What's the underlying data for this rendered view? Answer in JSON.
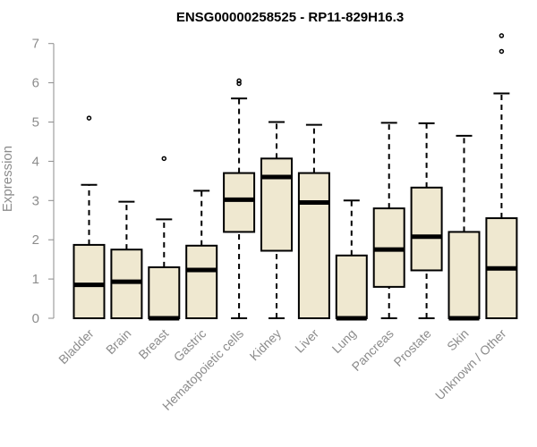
{
  "chart_data": {
    "type": "box",
    "title": "ENSG00000258525 - RP11-829H16.3",
    "xlabel": "",
    "ylabel": "Expression",
    "ylim": [
      0,
      7.2
    ],
    "yticks": [
      0,
      1,
      2,
      3,
      4,
      5,
      6,
      7
    ],
    "box_fill": "#efe8d0",
    "categories": [
      "Bladder",
      "Brain",
      "Breast",
      "Gastric",
      "Hematopoietic cells",
      "Kidney",
      "Liver",
      "Lung",
      "Pancreas",
      "Prostate",
      "Skin",
      "Unknown / Other"
    ],
    "boxes": [
      {
        "min": 0,
        "q1": 0,
        "median": 0.85,
        "q3": 1.87,
        "max": 3.4,
        "outliers": [
          5.1
        ]
      },
      {
        "min": 0,
        "q1": 0,
        "median": 0.93,
        "q3": 1.75,
        "max": 2.97,
        "outliers": []
      },
      {
        "min": 0,
        "q1": 0,
        "median": 0,
        "q3": 1.3,
        "max": 2.52,
        "outliers": [
          4.07
        ]
      },
      {
        "min": 0,
        "q1": 0,
        "median": 1.23,
        "q3": 1.85,
        "max": 3.25,
        "outliers": []
      },
      {
        "min": 0,
        "q1": 2.2,
        "median": 3.02,
        "q3": 3.7,
        "max": 5.6,
        "outliers": [
          5.98,
          6.05
        ]
      },
      {
        "min": 0,
        "q1": 1.72,
        "median": 3.6,
        "q3": 4.07,
        "max": 5.0,
        "outliers": []
      },
      {
        "min": 0,
        "q1": 0,
        "median": 2.95,
        "q3": 3.7,
        "max": 4.93,
        "outliers": []
      },
      {
        "min": 0,
        "q1": 0,
        "median": 0,
        "q3": 1.6,
        "max": 3.0,
        "outliers": []
      },
      {
        "min": 0,
        "q1": 0.8,
        "median": 1.75,
        "q3": 2.8,
        "max": 4.98,
        "outliers": []
      },
      {
        "min": 0,
        "q1": 1.22,
        "median": 2.08,
        "q3": 3.33,
        "max": 4.97,
        "outliers": []
      },
      {
        "min": 0,
        "q1": 0,
        "median": 0,
        "q3": 2.2,
        "max": 4.65,
        "outliers": []
      },
      {
        "min": 0,
        "q1": 0,
        "median": 1.27,
        "q3": 2.55,
        "max": 5.73,
        "outliers": [
          6.8,
          7.2
        ]
      }
    ]
  }
}
